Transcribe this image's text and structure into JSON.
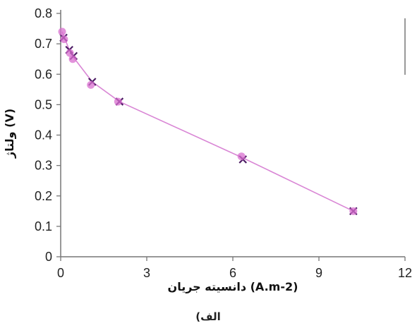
{
  "chart_data": {
    "type": "line",
    "title": "",
    "xlabel": "دانسیته جریان (A.m-2)",
    "ylabel": "ولتاژ (V)",
    "caption": "(الف",
    "xlim": [
      0,
      12
    ],
    "ylim": [
      0,
      0.8
    ],
    "xticks": [
      "0",
      "3",
      "6",
      "9",
      "12"
    ],
    "yticks": [
      "0",
      "0.1",
      "0.2",
      "0.3",
      "0.4",
      "0.5",
      "0.6",
      "0.7",
      "0.8"
    ],
    "grid": false,
    "legend": "none",
    "series": [
      {
        "marker": "x",
        "color": "#4b1b63",
        "x": [
          0.1,
          0.3,
          0.45,
          1.1,
          2.05,
          6.35,
          10.2
        ],
        "y": [
          0.72,
          0.68,
          0.66,
          0.575,
          0.51,
          0.32,
          0.15
        ]
      },
      {
        "marker": "circle",
        "color": "#d86fcf",
        "x": [
          0.05,
          0.12,
          0.32,
          0.42,
          1.05,
          2.0,
          6.3,
          10.2
        ],
        "y": [
          0.74,
          0.715,
          0.67,
          0.65,
          0.565,
          0.51,
          0.33,
          0.15
        ]
      }
    ],
    "line": {
      "color": "#d986d5",
      "x": [
        0.05,
        0.3,
        0.45,
        1.1,
        2.05,
        6.35,
        10.2
      ],
      "y": [
        0.74,
        0.68,
        0.655,
        0.575,
        0.51,
        0.325,
        0.15
      ]
    },
    "frame_color": "#777777"
  }
}
